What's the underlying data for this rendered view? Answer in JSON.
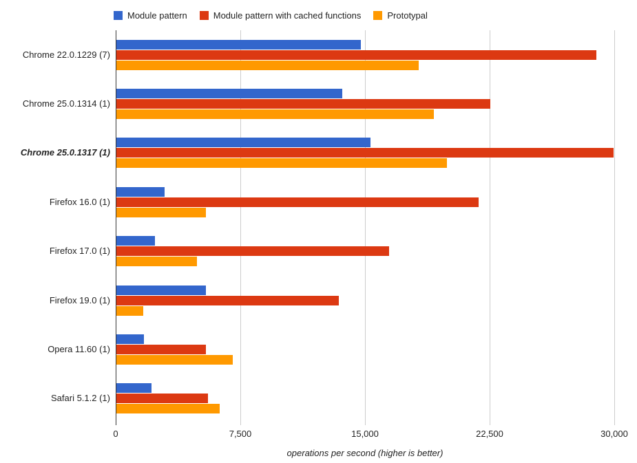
{
  "chart_data": {
    "type": "bar",
    "orientation": "horizontal",
    "title": "",
    "xlabel": "operations per second (higher is better)",
    "ylabel": "",
    "xlim": [
      0,
      30000
    ],
    "xticks": [
      0,
      7500,
      15000,
      22500,
      30000
    ],
    "xtick_labels": [
      "0",
      "7,500",
      "15,000",
      "22,500",
      "30,000"
    ],
    "grid": true,
    "legend_position": "top",
    "categories": [
      "Chrome 22.0.1229 (7)",
      "Chrome 25.0.1314 (1)",
      "Chrome 25.0.1317 (1)",
      "Firefox 16.0 (1)",
      "Firefox 17.0 (1)",
      "Firefox 19.0 (1)",
      "Opera 11.60 (1)",
      "Safari 5.1.2 (1)"
    ],
    "highlighted_category": "Chrome 25.0.1317 (1)",
    "series": [
      {
        "name": "Module pattern",
        "color": "#3366CC",
        "values": [
          14700,
          13600,
          15300,
          2900,
          2300,
          5400,
          1650,
          2100
        ]
      },
      {
        "name": "Module pattern with cached functions",
        "color": "#DC3912",
        "values": [
          28900,
          22500,
          29900,
          21800,
          16400,
          13400,
          5400,
          5500
        ]
      },
      {
        "name": "Prototypal",
        "color": "#FF9900",
        "values": [
          18200,
          19100,
          19900,
          5400,
          4850,
          1600,
          7000,
          6200
        ]
      }
    ]
  },
  "colors": {
    "gridline": "#cccccc",
    "axis_line": "#333333",
    "text": "#222222",
    "background": "#ffffff"
  }
}
